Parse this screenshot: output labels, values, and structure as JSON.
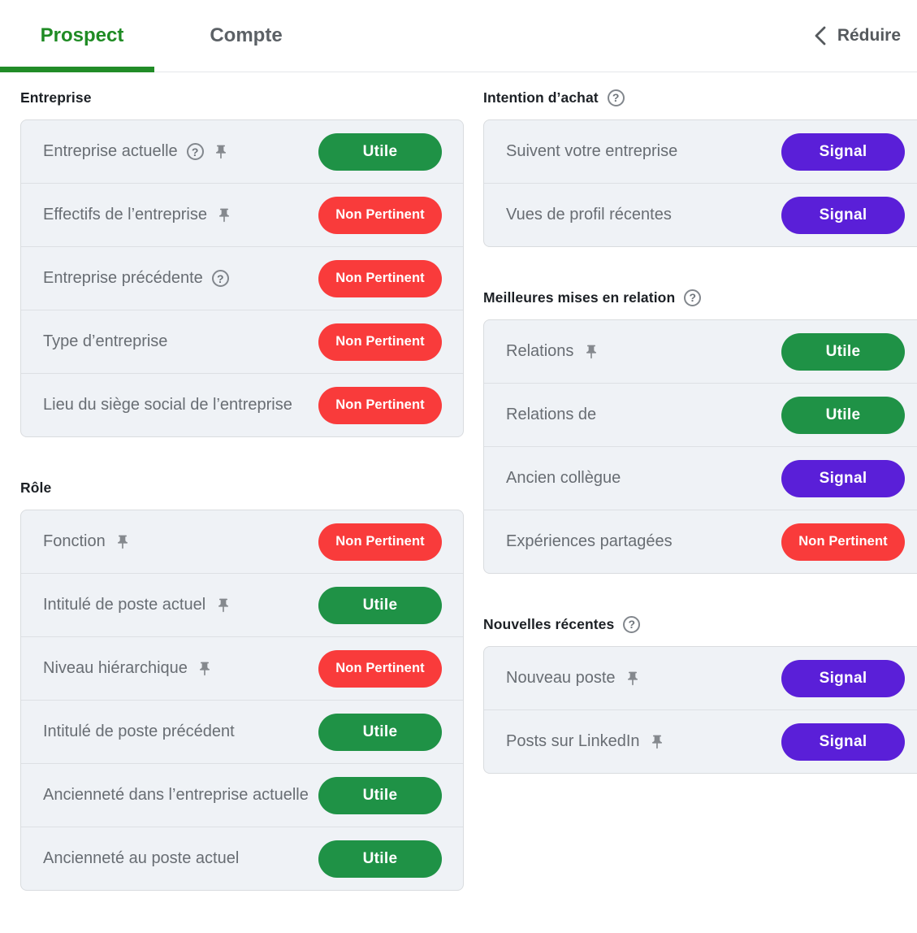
{
  "header": {
    "tabs": [
      {
        "label": "Prospect",
        "active": true
      },
      {
        "label": "Compte",
        "active": false
      }
    ],
    "collapse_label": "Réduire"
  },
  "statuses": {
    "utile": {
      "label": "Utile",
      "color": "#1f9246"
    },
    "non_pertinent": {
      "label": "Non Pertinent",
      "color": "#f93b3b"
    },
    "signal": {
      "label": "Signal",
      "color": "#5a1fd8"
    }
  },
  "icons": {
    "help": "question-circle-icon",
    "pin": "pushpin-icon",
    "collapse": "chevron-left-icon"
  },
  "colors": {
    "active_tab_green": "#1f8b24",
    "tab_underline_green": "#218c27",
    "card_background": "#eff2f6",
    "card_border": "#d9dcdf",
    "row_label_gray": "#686d73"
  },
  "columns": {
    "left": [
      {
        "title": "Entreprise",
        "help": false,
        "rows": [
          {
            "label": "Entreprise actuelle",
            "help": true,
            "pin": true,
            "status": "utile"
          },
          {
            "label": "Effectifs de l’entreprise",
            "help": false,
            "pin": true,
            "status": "non_pertinent"
          },
          {
            "label": "Entreprise précédente",
            "help": true,
            "pin": false,
            "status": "non_pertinent"
          },
          {
            "label": "Type d’entreprise",
            "help": false,
            "pin": false,
            "status": "non_pertinent"
          },
          {
            "label": "Lieu du siège social de l’entreprise",
            "help": false,
            "pin": false,
            "status": "non_pertinent"
          }
        ]
      },
      {
        "title": "Rôle",
        "help": false,
        "rows": [
          {
            "label": "Fonction",
            "help": false,
            "pin": true,
            "status": "non_pertinent"
          },
          {
            "label": "Intitulé de poste actuel",
            "help": false,
            "pin": true,
            "status": "utile"
          },
          {
            "label": "Niveau hiérarchique",
            "help": false,
            "pin": true,
            "status": "non_pertinent"
          },
          {
            "label": "Intitulé de poste précédent",
            "help": false,
            "pin": false,
            "status": "utile"
          },
          {
            "label": "Ancienneté dans l’entreprise actuelle",
            "help": false,
            "pin": false,
            "status": "utile"
          },
          {
            "label": "Ancienneté au poste actuel",
            "help": false,
            "pin": false,
            "status": "utile"
          }
        ]
      }
    ],
    "right": [
      {
        "title": "Intention d’achat",
        "help": true,
        "rows": [
          {
            "label": "Suivent votre entreprise",
            "help": false,
            "pin": false,
            "status": "signal"
          },
          {
            "label": "Vues de profil récentes",
            "help": false,
            "pin": false,
            "status": "signal"
          }
        ]
      },
      {
        "title": "Meilleures mises en relation",
        "help": true,
        "rows": [
          {
            "label": "Relations",
            "help": false,
            "pin": true,
            "status": "utile"
          },
          {
            "label": "Relations de",
            "help": false,
            "pin": false,
            "status": "utile"
          },
          {
            "label": "Ancien collègue",
            "help": false,
            "pin": false,
            "status": "signal"
          },
          {
            "label": "Expériences partagées",
            "help": false,
            "pin": false,
            "status": "non_pertinent"
          }
        ]
      },
      {
        "title": "Nouvelles récentes",
        "help": true,
        "rows": [
          {
            "label": "Nouveau poste",
            "help": false,
            "pin": true,
            "status": "signal"
          },
          {
            "label": "Posts sur LinkedIn",
            "help": false,
            "pin": true,
            "status": "signal"
          }
        ]
      }
    ]
  }
}
